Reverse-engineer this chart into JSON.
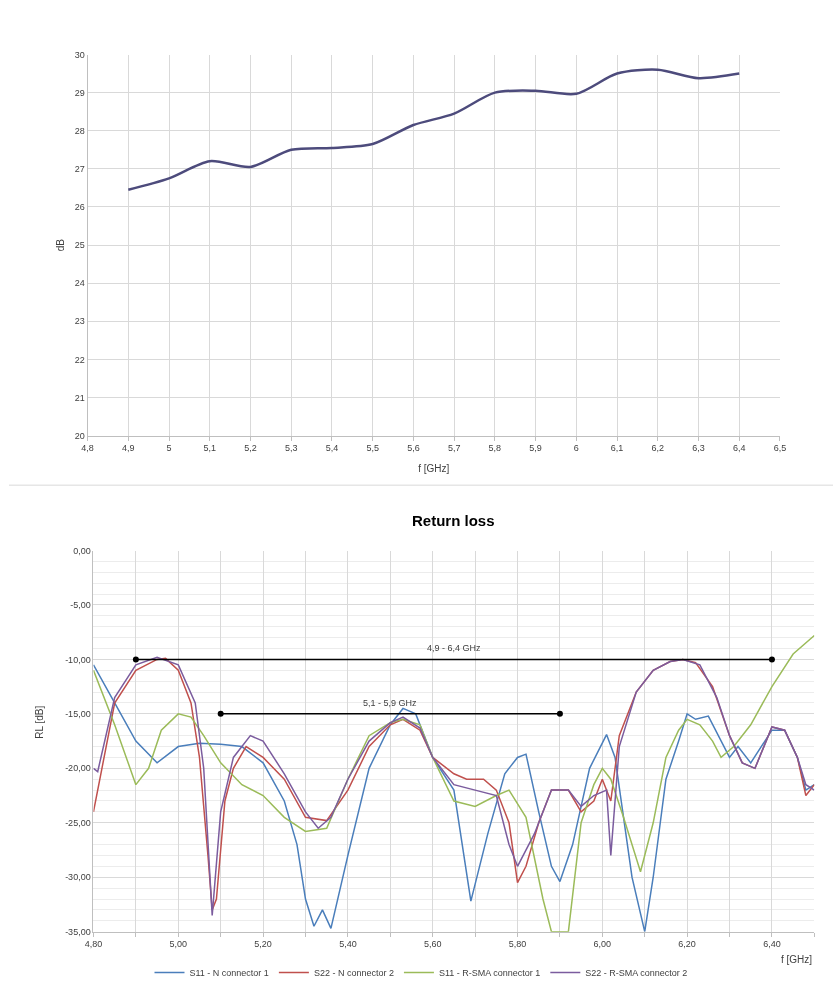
{
  "chart_data": [
    {
      "type": "line",
      "xlabel": "f [GHz]",
      "ylabel": "dB",
      "x": [
        4.9,
        5.0,
        5.1,
        5.2,
        5.3,
        5.4,
        5.5,
        5.6,
        5.7,
        5.8,
        5.9,
        6.0,
        6.1,
        6.2,
        6.3,
        6.4
      ],
      "series": [
        {
          "color": "#4d4b7c",
          "values": [
            26.45,
            26.75,
            27.2,
            27.05,
            27.5,
            27.55,
            27.65,
            28.15,
            28.45,
            29.0,
            29.05,
            28.97,
            29.5,
            29.6,
            29.38,
            29.5
          ]
        }
      ],
      "xlim": [
        4.8,
        6.5
      ],
      "ylim": [
        20,
        30
      ],
      "xticks": [
        {
          "value": 4.8,
          "label": "4,8"
        },
        {
          "value": 4.9,
          "label": "4,9"
        },
        5,
        {
          "value": 5.1,
          "label": "5,1"
        },
        {
          "value": 5.2,
          "label": "5,2"
        },
        {
          "value": 5.3,
          "label": "5,3"
        },
        {
          "value": 5.4,
          "label": "5,4"
        },
        {
          "value": 5.5,
          "label": "5,5"
        },
        {
          "value": 5.6,
          "label": "5,6"
        },
        {
          "value": 5.7,
          "label": "5,7"
        },
        {
          "value": 5.8,
          "label": "5,8"
        },
        {
          "value": 5.9,
          "label": "5,9"
        },
        6,
        {
          "value": 6.1,
          "label": "6,1"
        },
        {
          "value": 6.2,
          "label": "6,2"
        },
        {
          "value": 6.3,
          "label": "6,3"
        },
        {
          "value": 6.4,
          "label": "6,4"
        },
        {
          "value": 6.5,
          "label": "6,5"
        }
      ],
      "yticks": [
        20,
        21,
        22,
        23,
        24,
        25,
        26,
        27,
        28,
        29,
        30
      ],
      "grid": true,
      "legend": false
    },
    {
      "type": "line",
      "title": "Return loss",
      "xlabel": "f [GHz]",
      "ylabel": "RL [dB]",
      "series": [
        {
          "name": "S11 - N connector 1",
          "color": "#4a7ebb",
          "x": [
            4.8,
            4.85,
            4.9,
            4.95,
            5.0,
            5.05,
            5.1,
            5.15,
            5.2,
            5.25,
            5.28,
            5.3,
            5.32,
            5.34,
            5.36,
            5.4,
            5.45,
            5.5,
            5.53,
            5.56,
            5.6,
            5.65,
            5.69,
            5.73,
            5.77,
            5.8,
            5.82,
            5.85,
            5.88,
            5.9,
            5.93,
            5.97,
            6.01,
            6.03,
            6.07,
            6.1,
            6.12,
            6.15,
            6.18,
            6.2,
            6.22,
            6.25,
            6.3,
            6.32,
            6.35,
            6.4,
            6.43,
            6.46,
            6.48,
            6.5
          ],
          "values": [
            -10.5,
            -14,
            -17.5,
            -19.5,
            -18,
            -17.7,
            -17.8,
            -18,
            -19.5,
            -23,
            -27,
            -32,
            -34.5,
            -33,
            -34.7,
            -28,
            -20,
            -16,
            -14.5,
            -15,
            -19,
            -22,
            -32.2,
            -26,
            -20.5,
            -19,
            -18.7,
            -24,
            -29,
            -30.4,
            -27,
            -20,
            -16.9,
            -19,
            -30,
            -35,
            -30,
            -21,
            -17.5,
            -15,
            -15.5,
            -15.2,
            -19,
            -18,
            -19.5,
            -16.5,
            -16.5,
            -19,
            -22,
            -21.5
          ]
        },
        {
          "name": "S22 - N connector 2",
          "color": "#c0504d",
          "x": [
            4.8,
            4.82,
            4.85,
            4.9,
            4.95,
            4.97,
            5.0,
            5.03,
            5.05,
            5.07,
            5.08,
            5.09,
            5.11,
            5.13,
            5.16,
            5.2,
            5.25,
            5.3,
            5.35,
            5.4,
            5.45,
            5.5,
            5.53,
            5.57,
            5.6,
            5.65,
            5.68,
            5.72,
            5.75,
            5.78,
            5.8,
            5.82,
            5.85,
            5.88,
            5.92,
            5.95,
            5.98,
            6.0,
            6.02,
            6.04,
            6.08,
            6.12,
            6.16,
            6.19,
            6.22,
            6.26,
            6.3,
            6.33,
            6.36,
            6.4,
            6.43,
            6.46,
            6.48,
            6.5
          ],
          "values": [
            -24,
            -20,
            -14,
            -11,
            -10,
            -9.9,
            -11,
            -14,
            -19,
            -28,
            -33,
            -32,
            -23,
            -20,
            -18,
            -19,
            -21,
            -24.5,
            -24.8,
            -22,
            -18,
            -16,
            -15.5,
            -16.5,
            -19,
            -20.5,
            -21,
            -21,
            -22,
            -25,
            -30.5,
            -29,
            -25,
            -22,
            -22,
            -24,
            -23,
            -21,
            -23,
            -17,
            -13,
            -11,
            -10.2,
            -10,
            -10.3,
            -12.5,
            -17,
            -19.5,
            -20,
            -16.2,
            -16.5,
            -19,
            -22.5,
            -21.5
          ]
        },
        {
          "name": "S11 - R-SMA connector 1",
          "color": "#9bbb59",
          "x": [
            4.8,
            4.85,
            4.9,
            4.93,
            4.96,
            5.0,
            5.03,
            5.06,
            5.1,
            5.15,
            5.2,
            5.25,
            5.3,
            5.35,
            5.4,
            5.45,
            5.5,
            5.53,
            5.57,
            5.6,
            5.65,
            5.7,
            5.75,
            5.78,
            5.82,
            5.86,
            5.88,
            5.92,
            5.95,
            5.98,
            6.0,
            6.02,
            6.05,
            6.09,
            6.12,
            6.15,
            6.18,
            6.2,
            6.23,
            6.26,
            6.28,
            6.31,
            6.35,
            6.4,
            6.45,
            6.5
          ],
          "values": [
            -11,
            -16,
            -21.5,
            -20,
            -16.5,
            -15,
            -15.3,
            -17,
            -19.5,
            -21.5,
            -22.5,
            -24.5,
            -25.8,
            -25.5,
            -21,
            -17,
            -15.8,
            -15.5,
            -16,
            -19,
            -23,
            -23.5,
            -22.5,
            -22,
            -24.5,
            -32,
            -35,
            -35,
            -25,
            -21.5,
            -20,
            -21,
            -24.5,
            -29.5,
            -25,
            -19,
            -16.5,
            -15.5,
            -16,
            -17.5,
            -19,
            -18,
            -16,
            -12.5,
            -9.5,
            -7.8
          ]
        },
        {
          "name": "S22 - R-SMA connector 2",
          "color": "#7b5c9e",
          "x": [
            4.8,
            4.81,
            4.85,
            4.9,
            4.95,
            5.0,
            5.04,
            5.06,
            5.08,
            5.1,
            5.13,
            5.17,
            5.2,
            5.25,
            5.3,
            5.33,
            5.36,
            5.4,
            5.45,
            5.5,
            5.53,
            5.57,
            5.6,
            5.65,
            5.7,
            5.75,
            5.78,
            5.8,
            5.84,
            5.88,
            5.92,
            5.95,
            5.98,
            6.01,
            6.02,
            6.04,
            6.08,
            6.12,
            6.16,
            6.19,
            6.23,
            6.27,
            6.3,
            6.33,
            6.36,
            6.4,
            6.43,
            6.46,
            6.48,
            6.5
          ],
          "values": [
            -20,
            -20.3,
            -13.5,
            -10.5,
            -9.8,
            -10.5,
            -14,
            -20,
            -33.5,
            -24,
            -19,
            -17,
            -17.5,
            -20.5,
            -24,
            -25.5,
            -24.5,
            -21,
            -17.5,
            -15.8,
            -15.3,
            -16.3,
            -19,
            -21.5,
            -22,
            -22.5,
            -27,
            -29,
            -26,
            -22,
            -22,
            -23.5,
            -22.5,
            -22,
            -28,
            -18,
            -13,
            -11,
            -10.2,
            -10,
            -10.5,
            -13.5,
            -17,
            -19.5,
            -20,
            -16.2,
            -16.5,
            -19,
            -21.5,
            -22
          ]
        },
        {
          "color": "#000000",
          "marker": "circle",
          "x": [
            4.9,
            6.4
          ],
          "values": [
            -10,
            -10
          ]
        },
        {
          "color": "#000000",
          "marker": "circle",
          "x": [
            5.1,
            5.9
          ],
          "values": [
            -15,
            -15
          ]
        }
      ],
      "annotations": [
        {
          "text": "4,9 - 6,4 GHz",
          "x": 5.65,
          "y": -10
        },
        {
          "text": "5,1 - 5,9 GHz",
          "x": 5.5,
          "y": -15
        }
      ],
      "xlim": [
        4.8,
        6.5
      ],
      "ylim": [
        -35,
        0
      ],
      "xticks": [
        {
          "value": 4.8,
          "label": "4,80"
        },
        {
          "value": 4.9,
          "label": null
        },
        {
          "value": 5.0,
          "label": "5,00"
        },
        {
          "value": 5.1,
          "label": null
        },
        {
          "value": 5.2,
          "label": "5,20"
        },
        {
          "value": 5.3,
          "label": null
        },
        {
          "value": 5.4,
          "label": "5,40"
        },
        {
          "value": 5.5,
          "label": null
        },
        {
          "value": 5.6,
          "label": "5,60"
        },
        {
          "value": 5.7,
          "label": null
        },
        {
          "value": 5.8,
          "label": "5,80"
        },
        {
          "value": 5.9,
          "label": null
        },
        {
          "value": 6.0,
          "label": "6,00"
        },
        {
          "value": 6.1,
          "label": null
        },
        {
          "value": 6.2,
          "label": "6,20"
        },
        {
          "value": 6.3,
          "label": null
        },
        {
          "value": 6.4,
          "label": "6,40"
        },
        {
          "value": 6.5,
          "label": null
        }
      ],
      "yticks": [
        {
          "value": 0,
          "label": "0,00"
        },
        {
          "value": -5,
          "label": "-5,00"
        },
        {
          "value": -10,
          "label": "-10,00"
        },
        {
          "value": -15,
          "label": "-15,00"
        },
        {
          "value": -20,
          "label": "-20,00"
        },
        {
          "value": -25,
          "label": "-25,00"
        },
        {
          "value": -30,
          "label": "-30,00"
        },
        {
          "value": -35,
          "label": "-35,00"
        }
      ],
      "grid": true,
      "legend": "bottom"
    }
  ]
}
